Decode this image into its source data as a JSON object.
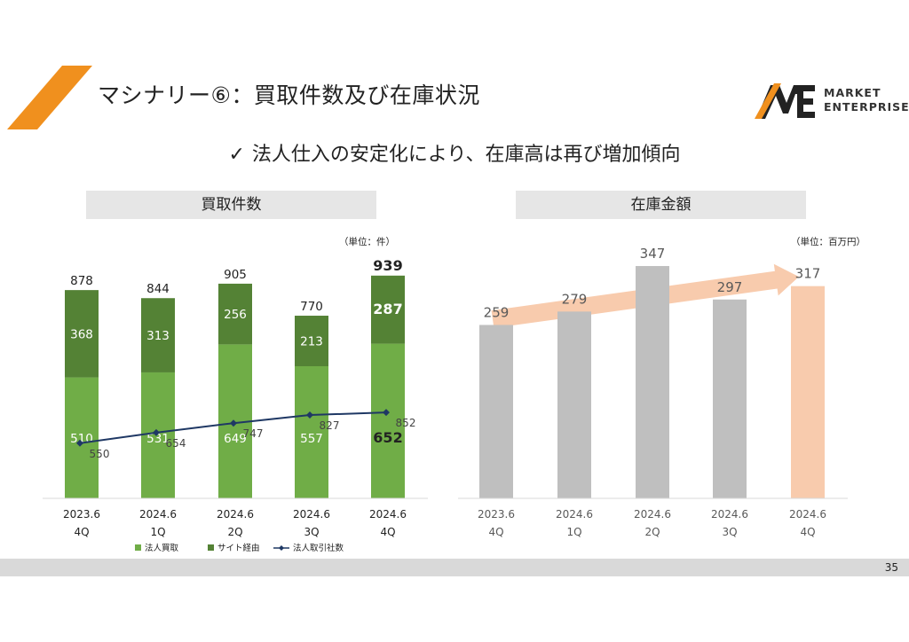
{
  "page": {
    "title": "マシナリー⑥：買取件数及び在庫状況",
    "subtitle_check": "✓",
    "subtitle": "法人仕入の安定化により、在庫高は再び増加傾向",
    "page_number": "35",
    "accent_color": "#f0901e"
  },
  "logo": {
    "line1": "MARKET",
    "line2": "ENTERPRISE"
  },
  "left_panel": {
    "header": "買取件数"
  },
  "right_panel": {
    "header": "在庫金額"
  },
  "chart_data": [
    {
      "type": "bar",
      "stacked": true,
      "title": "買取件数",
      "unit_label": "（単位：件）",
      "categories": [
        {
          "line1": "2023.6",
          "line2": "4Q"
        },
        {
          "line1": "2024.6",
          "line2": "1Q"
        },
        {
          "line1": "2024.6",
          "line2": "2Q"
        },
        {
          "line1": "2024.6",
          "line2": "3Q"
        },
        {
          "line1": "2024.6",
          "line2": "4Q"
        }
      ],
      "series": [
        {
          "name": "法人買取",
          "values": [
            510,
            531,
            649,
            557,
            652
          ],
          "color": "#70ad47"
        },
        {
          "name": "サイト経由",
          "values": [
            368,
            313,
            256,
            213,
            287
          ],
          "color": "#548235"
        }
      ],
      "totals": [
        878,
        844,
        905,
        770,
        939
      ],
      "line_series": {
        "name": "法人取引社数",
        "values": [
          550,
          654,
          747,
          827,
          852
        ],
        "color": "#1f3864"
      },
      "legend_position": "bottom",
      "grid": false
    },
    {
      "type": "bar",
      "title": "在庫金額",
      "unit_label": "（単位：百万円）",
      "categories": [
        {
          "line1": "2023.6",
          "line2": "4Q"
        },
        {
          "line1": "2024.6",
          "line2": "1Q"
        },
        {
          "line1": "2024.6",
          "line2": "2Q"
        },
        {
          "line1": "2024.6",
          "line2": "3Q"
        },
        {
          "line1": "2024.6",
          "line2": "4Q"
        }
      ],
      "values": [
        259,
        279,
        347,
        297,
        317
      ],
      "bar_color": "#bfbfbf",
      "highlight_color": "#f8cbad",
      "highlight_index": 4,
      "trend_arrow_color": "#f8cbad",
      "grid": false
    }
  ]
}
